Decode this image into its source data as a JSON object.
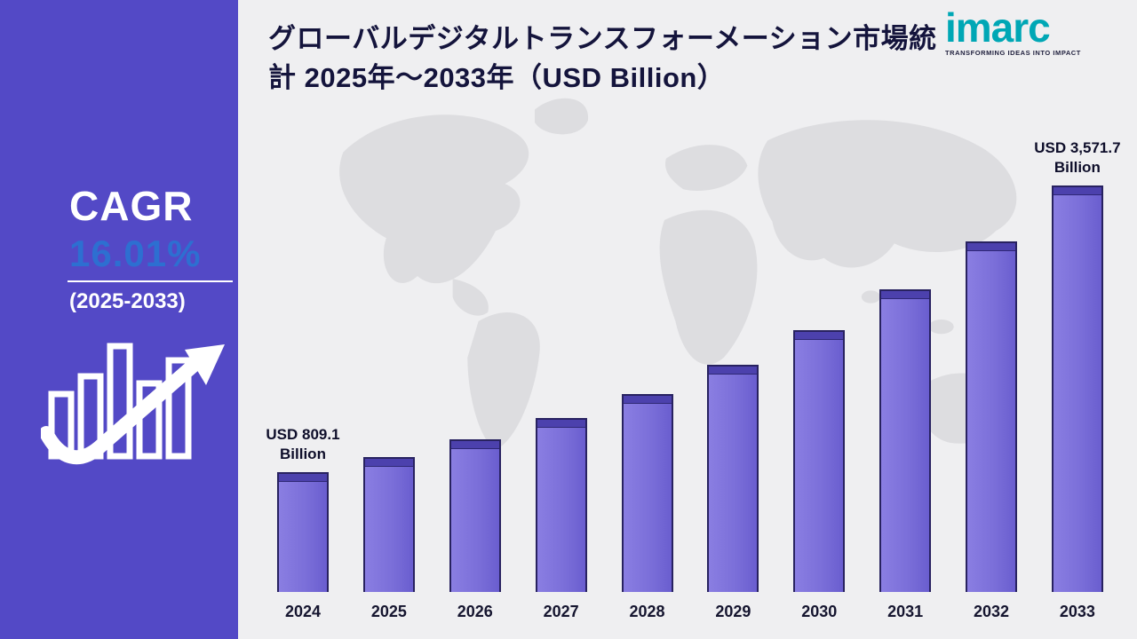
{
  "sidebar": {
    "cagr_label": "CAGR",
    "cagr_value": "16.01%",
    "period": "(2025-2033)",
    "background": "#5349c6",
    "value_color": "#2d6fd1"
  },
  "header": {
    "title": "グローバルデジタルトランスフォーメーション市場統計 2025年～2033年（USD Billion）"
  },
  "logo": {
    "brand": "imarc",
    "tagline": "TRANSFORMING IDEAS INTO IMPACT",
    "brand_color": "#00a7b5"
  },
  "chart_data": {
    "type": "bar",
    "title": "グローバルデジタルトランスフォーメーション市場統計 2025年～2033年（USD Billion）",
    "unit": "USD Billion",
    "categories": [
      "2024",
      "2025",
      "2026",
      "2027",
      "2028",
      "2029",
      "2030",
      "2031",
      "2032",
      "2033"
    ],
    "values": [
      809.1,
      954.3,
      1125.6,
      1327.6,
      1565.9,
      1846.9,
      2178.4,
      2569.3,
      3030.4,
      3571.7
    ],
    "values_note": "only first and last values are labeled on the chart; intermediate values estimated from bar heights",
    "annotations": [
      {
        "index": 0,
        "text": "USD 809.1\nBillion"
      },
      {
        "index": 9,
        "text": "USD 3,571.7\nBillion"
      }
    ],
    "cagr": "16.01%",
    "cagr_period": "2025-2033",
    "bar_color": "#7b6fd9",
    "bar_top_color": "#4c41ad",
    "legend": "none",
    "grid": "off",
    "background": "#efeff1"
  }
}
